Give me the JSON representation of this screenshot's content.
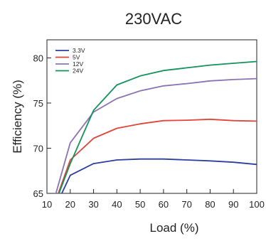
{
  "chart_data": {
    "type": "line",
    "title": "230VAC",
    "xlabel": "Load (%)",
    "ylabel": "Efficiency (%)",
    "xlim": [
      10,
      100
    ],
    "ylim": [
      65,
      82
    ],
    "x_ticks": [
      10,
      20,
      30,
      40,
      50,
      60,
      70,
      80,
      90,
      100
    ],
    "y_ticks": [
      65,
      70,
      75,
      80
    ],
    "grid": false,
    "legend_position": "top-left",
    "series": [
      {
        "name": "3.3V",
        "color": "#2b3f9e",
        "x": [
          10,
          20,
          30,
          40,
          50,
          60,
          70,
          80,
          90,
          100
        ],
        "y": [
          61.5,
          67.0,
          68.3,
          68.7,
          68.8,
          68.8,
          68.7,
          68.6,
          68.45,
          68.2
        ]
      },
      {
        "name": "5V",
        "color": "#e2433a",
        "x": [
          10,
          20,
          30,
          40,
          50,
          60,
          70,
          80,
          90,
          100
        ],
        "y": [
          61.5,
          68.7,
          71.1,
          72.2,
          72.7,
          73.05,
          73.1,
          73.2,
          73.05,
          73.0
        ]
      },
      {
        "name": "12V",
        "color": "#8a72b4",
        "x": [
          10,
          20,
          30,
          40,
          50,
          60,
          70,
          80,
          90,
          100
        ],
        "y": [
          61.5,
          70.6,
          74.0,
          75.5,
          76.35,
          76.9,
          77.15,
          77.45,
          77.6,
          77.7
        ]
      },
      {
        "name": "24V",
        "color": "#11935a",
        "x": [
          10,
          20,
          30,
          40,
          50,
          60,
          70,
          80,
          90,
          100
        ],
        "y": [
          61.5,
          68.3,
          74.2,
          77.0,
          78.0,
          78.6,
          78.9,
          79.2,
          79.4,
          79.6
        ]
      }
    ]
  }
}
